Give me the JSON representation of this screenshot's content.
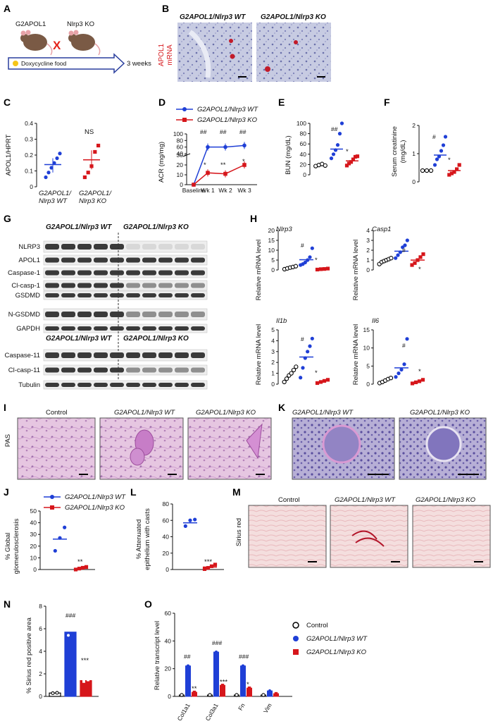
{
  "panels": [
    "A",
    "B",
    "C",
    "D",
    "E",
    "F",
    "G",
    "H",
    "I",
    "K",
    "J",
    "L",
    "M",
    "N",
    "O"
  ],
  "genotypes": {
    "wt": "G2APOL1/Nlrp3 WT",
    "ko": "G2APOL1/Nlrp3 KO",
    "control": "Control"
  },
  "colors": {
    "wt": "#1f3fd6",
    "ko": "#d6161b",
    "control": "#000000"
  },
  "A": {
    "mouse1": "G2APOL1",
    "mouse2": "Nlrp3 KO",
    "cross": "X",
    "food": "Doxycycline food",
    "duration": "3 weeks"
  },
  "B": {
    "ylabel_line1": "APOL1",
    "ylabel_line2": "mRNA"
  },
  "C": {
    "ylabel": "APOL1/HPRT",
    "sig": "NS",
    "ticks": [
      "0",
      "0.1",
      "0.2",
      "0.3",
      "0.4"
    ],
    "x1_line1": "G2APOL1/",
    "x1_line2": "Nlrp3 WT",
    "x2_line1": "G2APOL1/",
    "x2_line2": "Nlrp3 KO"
  },
  "D": {
    "ylabel": "ACR (mg/mg)",
    "xticks": [
      "Baseline",
      "Wk 1",
      "Wk 2",
      "Wk 3"
    ],
    "yticks_low": [
      "0",
      "10",
      "20",
      "30"
    ],
    "yticks_high": [
      "40",
      "60",
      "80",
      "100"
    ],
    "sig_hash": "##",
    "sig_star1": "*",
    "sig_star2": "**",
    "sig_star3": "*"
  },
  "E": {
    "ylabel": "BUN (mg/dL)",
    "ticks": [
      "0",
      "20",
      "40",
      "60",
      "80",
      "100"
    ],
    "sig_hash": "##",
    "sig_star": "*"
  },
  "F": {
    "ylabel_line1": "Serum creatinine",
    "ylabel_line2": "(mg/dL)",
    "ticks": [
      "0",
      "1",
      "2"
    ],
    "sig_hash": "#",
    "sig_star": "*"
  },
  "G": {
    "proteins": [
      "NLRP3",
      "APOL1",
      "Caspase-1",
      "Cl-casp-1",
      "GSDMD",
      "N-GSDMD",
      "GAPDH",
      "Caspase-11",
      "Cl-casp-11",
      "Tubulin"
    ]
  },
  "H": {
    "ylabel": "Relative mRNA level",
    "genes": [
      {
        "name": "Nlrp3",
        "ticks": [
          "0",
          "5",
          "10",
          "15",
          "20"
        ]
      },
      {
        "name": "Casp1",
        "ticks": [
          "0",
          "1",
          "2",
          "3",
          "4"
        ]
      },
      {
        "name": "Il1b",
        "ticks": [
          "0",
          "1",
          "2",
          "3",
          "4",
          "5"
        ]
      },
      {
        "name": "Il6",
        "ticks": [
          "0",
          "5",
          "10",
          "15"
        ]
      }
    ],
    "sig_hash": "#",
    "sig_star": "*"
  },
  "I": {
    "label": "PAS"
  },
  "J": {
    "ylabel_line1": "% Global",
    "ylabel_line2": "glomerulosclerosis",
    "ticks": [
      "0",
      "10",
      "20",
      "30",
      "40",
      "50"
    ],
    "sig": "**"
  },
  "L": {
    "ylabel_line1": "% Attenuated",
    "ylabel_line2": "epithelium with casts",
    "ticks": [
      "0",
      "20",
      "40",
      "60",
      "80"
    ],
    "sig": "***"
  },
  "M": {
    "label": "Sirius red"
  },
  "N": {
    "ylabel": "% Sirius red positive area",
    "ticks": [
      "0",
      "2",
      "4",
      "6",
      "8"
    ],
    "sig_hash": "###",
    "sig_star": "***"
  },
  "O": {
    "ylabel": "Relative transcript level",
    "ticks": [
      "0",
      "20",
      "40",
      "60"
    ],
    "genes": [
      "Col1a1",
      "Col3a1",
      "Fn",
      "Vim"
    ],
    "sig_hash": [
      "##",
      "###",
      "###"
    ],
    "sig_star": [
      "**",
      "***",
      "*"
    ]
  },
  "chart_data": [
    {
      "panel": "C",
      "type": "scatter",
      "series": [
        {
          "name": "G2APOL1/Nlrp3 WT",
          "mean": 0.14,
          "values": [
            0.06,
            0.09,
            0.12,
            0.15,
            0.18,
            0.21
          ]
        },
        {
          "name": "G2APOL1/Nlrp3 KO",
          "mean": 0.17,
          "values": [
            0.06,
            0.09,
            0.13,
            0.22,
            0.26
          ]
        }
      ],
      "ylim": [
        0,
        0.4
      ]
    },
    {
      "panel": "D",
      "type": "line",
      "x": [
        "Baseline",
        "Wk 1",
        "Wk 2",
        "Wk 3"
      ],
      "series": [
        {
          "name": "G2APOL1/Nlrp3 WT",
          "values": [
            0,
            60,
            60,
            65
          ]
        },
        {
          "name": "G2APOL1/Nlrp3 KO",
          "values": [
            0,
            12,
            11,
            20
          ]
        }
      ],
      "ylim": [
        0,
        100
      ]
    },
    {
      "panel": "E",
      "type": "scatter",
      "series": [
        {
          "name": "Control",
          "values": [
            17,
            19,
            21,
            18
          ]
        },
        {
          "name": "G2APOL1/Nlrp3 WT",
          "mean": 50,
          "values": [
            32,
            40,
            48,
            58,
            80,
            100
          ]
        },
        {
          "name": "G2APOL1/Nlrp3 KO",
          "mean": 27,
          "values": [
            18,
            22,
            25,
            30,
            35,
            36
          ]
        }
      ],
      "ylim": [
        0,
        100
      ]
    },
    {
      "panel": "F",
      "type": "scatter",
      "series": [
        {
          "name": "Control",
          "values": [
            0.4,
            0.4,
            0.4
          ]
        },
        {
          "name": "G2APOL1/Nlrp3 WT",
          "mean": 0.95,
          "values": [
            0.6,
            0.8,
            0.9,
            1.1,
            1.3,
            1.6
          ]
        },
        {
          "name": "G2APOL1/Nlrp3 KO",
          "mean": 0.4,
          "values": [
            0.25,
            0.3,
            0.35,
            0.45,
            0.6
          ]
        }
      ],
      "ylim": [
        0,
        2
      ]
    },
    {
      "panel": "H",
      "gene": "Nlrp3",
      "type": "scatter",
      "series": [
        {
          "name": "Control",
          "values": [
            0.4,
            0.8,
            1.2,
            1.5,
            1.9
          ]
        },
        {
          "name": "G2APOL1/Nlrp3 WT",
          "mean": 5.2,
          "values": [
            2.5,
            3.0,
            3.8,
            5.0,
            6.5,
            11
          ]
        },
        {
          "name": "G2APOL1/Nlrp3 KO",
          "values": [
            0.2,
            0.4,
            0.5,
            0.7
          ]
        }
      ],
      "ylim": [
        0,
        20
      ]
    },
    {
      "panel": "H",
      "gene": "Casp1",
      "type": "scatter",
      "series": [
        {
          "name": "Control",
          "values": [
            0.6,
            0.8,
            0.9,
            1.0,
            1.1,
            1.2
          ]
        },
        {
          "name": "G2APOL1/Nlrp3 WT",
          "mean": 1.9,
          "values": [
            1.2,
            1.5,
            1.8,
            2.3,
            2.5,
            3.0
          ]
        },
        {
          "name": "G2APOL1/Nlrp3 KO",
          "mean": 1.0,
          "values": [
            0.5,
            0.7,
            1.0,
            1.3,
            1.6
          ]
        }
      ],
      "ylim": [
        0,
        4
      ]
    },
    {
      "panel": "H",
      "gene": "Il1b",
      "type": "scatter",
      "series": [
        {
          "name": "Control",
          "values": [
            0.2,
            0.5,
            0.8,
            1.0,
            1.3,
            1.6
          ]
        },
        {
          "name": "G2APOL1/Nlrp3 WT",
          "mean": 2.5,
          "values": [
            0.6,
            1.5,
            2.4,
            3.0,
            3.5,
            4.2
          ]
        },
        {
          "name": "G2APOL1/Nlrp3 KO",
          "values": [
            0.1,
            0.2,
            0.3,
            0.4
          ]
        }
      ],
      "ylim": [
        0,
        5
      ]
    },
    {
      "panel": "H",
      "gene": "Il6",
      "type": "scatter",
      "series": [
        {
          "name": "Control",
          "values": [
            0.3,
            0.6,
            1.0,
            1.4,
            1.7
          ]
        },
        {
          "name": "G2APOL1/Nlrp3 WT",
          "mean": 4.5,
          "values": [
            2.0,
            3.0,
            4.0,
            5.5,
            12.5
          ]
        },
        {
          "name": "G2APOL1/Nlrp3 KO",
          "values": [
            0.2,
            0.5,
            0.8,
            1.2
          ]
        }
      ],
      "ylim": [
        0,
        15
      ]
    },
    {
      "panel": "J",
      "type": "scatter",
      "series": [
        {
          "name": "G2APOL1/Nlrp3 WT",
          "mean": 26,
          "values": [
            16,
            27,
            36
          ]
        },
        {
          "name": "G2APOL1/Nlrp3 KO",
          "mean": 1,
          "values": [
            0,
            0.8,
            1.5,
            2.2
          ]
        }
      ],
      "ylim": [
        0,
        50
      ]
    },
    {
      "panel": "L",
      "type": "scatter",
      "series": [
        {
          "name": "G2APOL1/Nlrp3 WT",
          "mean": 57,
          "values": [
            53,
            60,
            61
          ]
        },
        {
          "name": "G2APOL1/Nlrp3 KO",
          "mean": 3,
          "values": [
            0.5,
            2,
            4,
            6
          ]
        }
      ],
      "ylim": [
        0,
        80
      ]
    },
    {
      "panel": "N",
      "type": "bar",
      "categories": [
        "Control",
        "G2APOL1/Nlrp3 WT",
        "G2APOL1/Nlrp3 KO"
      ],
      "values": [
        0.3,
        5.7,
        1.4
      ],
      "ylim": [
        0,
        8
      ]
    },
    {
      "panel": "O",
      "type": "bar",
      "categories": [
        "Col1a1",
        "Col3a1",
        "Fn",
        "Vim"
      ],
      "series": [
        {
          "name": "Control",
          "values": [
            1,
            1,
            1,
            1
          ]
        },
        {
          "name": "G2APOL1/Nlrp3 WT",
          "values": [
            22,
            32,
            22,
            4
          ]
        },
        {
          "name": "G2APOL1/Nlrp3 KO",
          "values": [
            3,
            8,
            6,
            2
          ]
        }
      ],
      "ylim": [
        0,
        60
      ]
    }
  ]
}
